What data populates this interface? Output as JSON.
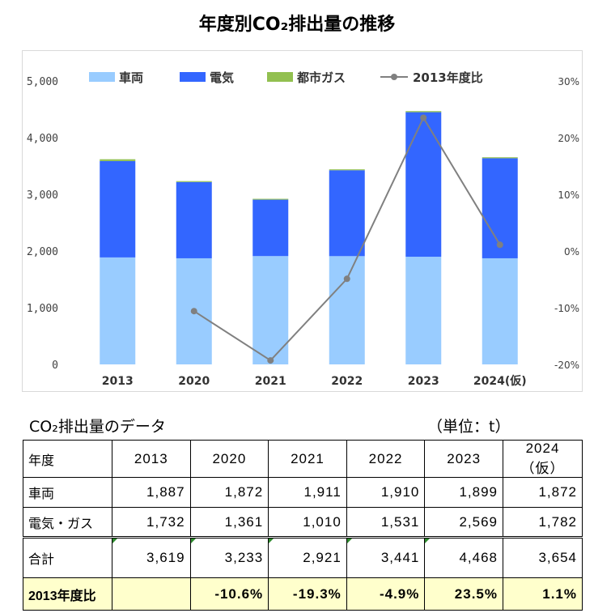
{
  "chart_title": "年度別CO₂排出量の推移",
  "chart_data": {
    "type": "bar",
    "stacked": true,
    "title": "年度別CO₂排出量の推移",
    "categories": [
      "2013",
      "2020",
      "2021",
      "2022",
      "2023",
      "2024(仮)"
    ],
    "series": [
      {
        "name": "車両",
        "type": "bar",
        "color": "#99ccff",
        "values": [
          1887,
          1872,
          1911,
          1910,
          1899,
          1872
        ]
      },
      {
        "name": "電気",
        "type": "bar",
        "color": "#3366ff",
        "values": [
          1700,
          1345,
          995,
          1515,
          2550,
          1765
        ]
      },
      {
        "name": "都市ガス",
        "type": "bar",
        "color": "#92c050",
        "values": [
          32,
          16,
          15,
          16,
          19,
          17
        ]
      },
      {
        "name": "2013年度比",
        "type": "line",
        "axis": "right",
        "color": "#808080",
        "values": [
          null,
          -10.6,
          -19.3,
          -4.9,
          23.5,
          1.1
        ]
      }
    ],
    "y_left": {
      "min": 0,
      "max": 5000,
      "ticks": [
        0,
        1000,
        2000,
        3000,
        4000,
        5000
      ],
      "tick_labels": [
        "0",
        "1,000",
        "2,000",
        "3,000",
        "4,000",
        "5,000"
      ]
    },
    "y_right": {
      "min": -20,
      "max": 30,
      "ticks": [
        -20,
        -10,
        0,
        10,
        20,
        30
      ],
      "tick_labels": [
        "-20%",
        "-10%",
        "0%",
        "10%",
        "20%",
        "30%"
      ]
    },
    "legend": "top",
    "grid": false
  },
  "table": {
    "caption": "CO₂排出量のデータ",
    "unit": "（単位：t）",
    "header": [
      "年度",
      "2013",
      "2020",
      "2021",
      "2022",
      "2023",
      "2024（仮）"
    ],
    "rows": [
      {
        "label": "車両",
        "values": [
          "1,887",
          "1,872",
          "1,911",
          "1,910",
          "1,899",
          "1,872"
        ]
      },
      {
        "label": "電気・ガス",
        "values": [
          "1,732",
          "1,361",
          "1,010",
          "1,531",
          "2,569",
          "1,782"
        ]
      },
      {
        "label": "合計",
        "values": [
          "3,619",
          "3,233",
          "2,921",
          "3,441",
          "4,468",
          "3,654"
        ]
      },
      {
        "label": "2013年度比",
        "values": [
          "",
          "-10.6%",
          "-19.3%",
          "-4.9%",
          "23.5%",
          "1.1%"
        ]
      }
    ]
  }
}
